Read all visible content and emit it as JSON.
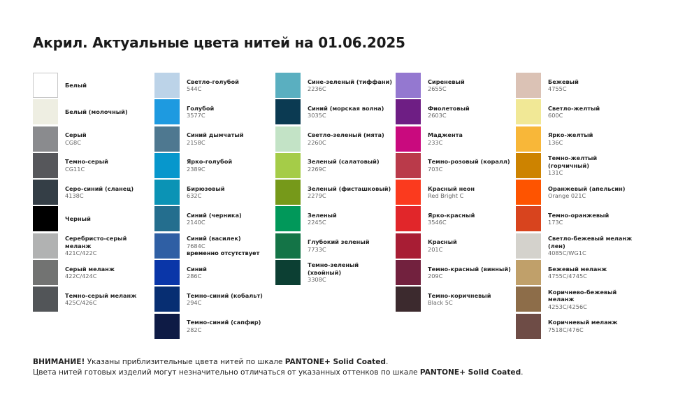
{
  "title": "Акрил. Актуальные цвета нитей на 01.06.2025",
  "columns": [
    [
      {
        "name": "Белый",
        "code": "",
        "color": "#ffffff"
      },
      {
        "name": "Белый (молочный)",
        "code": "",
        "color": "#eeeee2"
      },
      {
        "name": "Серый",
        "code": "CG8C",
        "color": "#8a8b8e"
      },
      {
        "name": "Темно-серый",
        "code": "CG11C",
        "color": "#56575b"
      },
      {
        "name": "Серо-синий (сланец)",
        "code": "4138C",
        "color": "#343e46"
      },
      {
        "name": "Черный",
        "code": "",
        "color": "#000000"
      },
      {
        "name": "Серебристо-серый меланж",
        "code": "421C/422C",
        "color": "#b1b2b2"
      },
      {
        "name": "Серый меланж",
        "code": "422C/424C",
        "color": "#727372"
      },
      {
        "name": "Темно-серый меланж",
        "code": "425C/426C",
        "color": "#525558"
      }
    ],
    [
      {
        "name": "Светло-голубой",
        "code": "544C",
        "color": "#bcd3e8"
      },
      {
        "name": "Голубой",
        "code": "3577C",
        "color": "#1e9ae0"
      },
      {
        "name": "Синий дымчатый",
        "code": "2158C",
        "color": "#4e7890"
      },
      {
        "name": "Ярко-голубой",
        "code": "2389C",
        "color": "#0797cc"
      },
      {
        "name": "Бирюзовый",
        "code": "632C",
        "color": "#0b93b5"
      },
      {
        "name": "Синий (черника)",
        "code": "2140C",
        "color": "#246e8e"
      },
      {
        "name": "Синий (василек)",
        "code": "7684C",
        "note": "временно отсутствует",
        "color": "#2f5fa4"
      },
      {
        "name": "Синий",
        "code": "286C",
        "color": "#0a36a8"
      },
      {
        "name": "Темно-синий (кобальт)",
        "code": "294C",
        "color": "#072e72"
      },
      {
        "name": "Темно-синий (сапфир)",
        "code": "282C",
        "color": "#0e1b45"
      }
    ],
    [
      {
        "name": "Сине-зеленый (тиффани)",
        "code": "2236C",
        "color": "#5aafc0"
      },
      {
        "name": "Синий (морская волна)",
        "code": "3035C",
        "color": "#0b3a52"
      },
      {
        "name": "Светло-зеленый (мята)",
        "code": "2260C",
        "color": "#c3e3c6"
      },
      {
        "name": "Зеленый (салатовый)",
        "code": "2269C",
        "color": "#a5cc48"
      },
      {
        "name": "Зеленый (фисташковый)",
        "code": "2279C",
        "color": "#76991a"
      },
      {
        "name": "Зеленый",
        "code": "2245C",
        "color": "#01985a"
      },
      {
        "name": "Глубокий зеленый",
        "code": "7733C",
        "color": "#147447"
      },
      {
        "name": "Темно-зеленый (хвойный)",
        "code": "3308C",
        "color": "#0c3f33"
      }
    ],
    [
      {
        "name": "Сиреневый",
        "code": "2655C",
        "color": "#9478d0"
      },
      {
        "name": "Фиолетовый",
        "code": "2603C",
        "color": "#6e1e84"
      },
      {
        "name": "Маджента",
        "code": "233C",
        "color": "#c90a7e"
      },
      {
        "name": "Темно-розовый (коралл)",
        "code": "703C",
        "color": "#ba3a4a"
      },
      {
        "name": "Красный неон",
        "code": "Red Bright C",
        "color": "#fb3a1e"
      },
      {
        "name": "Ярко-красный",
        "code": "3546C",
        "color": "#e1262a"
      },
      {
        "name": "Красный",
        "code": "201C",
        "color": "#a81d34"
      },
      {
        "name": "Темно-красный (винный)",
        "code": "209C",
        "color": "#72213e"
      },
      {
        "name": "Темно-коричневый",
        "code": "Black 5C",
        "color": "#3c2a2e"
      }
    ],
    [
      {
        "name": "Бежевый",
        "code": "4755C",
        "color": "#dbc2b5"
      },
      {
        "name": "Светло-желтый",
        "code": "600C",
        "color": "#f1e896"
      },
      {
        "name": "Ярко-желтый",
        "code": "136C",
        "color": "#f8b739"
      },
      {
        "name": "Темно-желтый (горчичный)",
        "code": "131C",
        "color": "#cd8300"
      },
      {
        "name": "Оранжевый (апельсин)",
        "code": "Orange 021C",
        "color": "#fe5400"
      },
      {
        "name": "Темно-оранжевый",
        "code": "173C",
        "color": "#d8441e"
      },
      {
        "name": "Светло-бежевый меланж (лен)",
        "code": "4085C/WG1C",
        "color": "#d4d2cc"
      },
      {
        "name": "Бежевый меланж",
        "code": "4755C/4745C",
        "color": "#c0a06a"
      },
      {
        "name": "Коричнево-бежевый меланж",
        "code": "4253C/4256C",
        "color": "#8d6d49"
      },
      {
        "name": "Коричневый меланж",
        "code": "7518C/476C",
        "color": "#6e4c46"
      }
    ]
  ],
  "footer": {
    "line1_bold": "ВНИМАНИЕ!",
    "line1_text": " Указаны приблизительные цвета нитей по шкале ",
    "line1_scale": "PANTONE+ Solid Coated",
    "line1_end": ".",
    "line2_text": "Цвета нитей готовых изделий могут незначительно отличаться от указанных оттенков по шкале ",
    "line2_scale": "PANTONE+ Solid Coated",
    "line2_end": "."
  }
}
